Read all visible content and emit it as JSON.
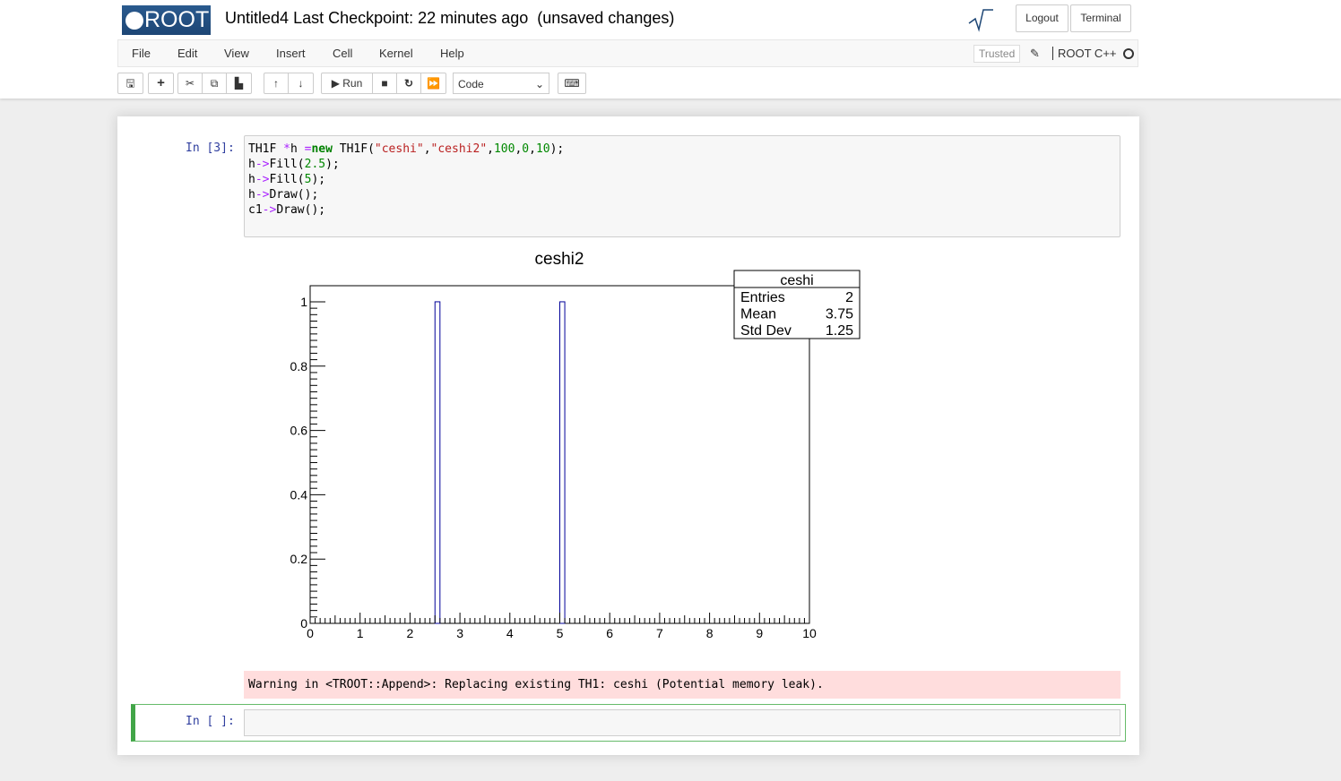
{
  "header": {
    "logo": "ROOT",
    "title": "Untitled4",
    "checkpoint": "Last Checkpoint: 22 minutes ago",
    "unsaved": "(unsaved changes)",
    "logout": "Logout",
    "terminal": "Terminal"
  },
  "menu": [
    "File",
    "Edit",
    "View",
    "Insert",
    "Cell",
    "Kernel",
    "Help"
  ],
  "status": {
    "trusted": "Trusted",
    "kernel": "ROOT C++"
  },
  "toolbar": {
    "run": "Run",
    "cell_type": "Code"
  },
  "cell1": {
    "prompt": "In [3]:",
    "code": [
      "TH1F *h =new TH1F(\"ceshi\",\"ceshi2\",100,0,10);",
      "h->Fill(2.5);",
      "h->Fill(5);",
      "h->Draw();",
      "c1->Draw();"
    ]
  },
  "warning": "Warning in <TROOT::Append>: Replacing existing TH1: ceshi (Potential memory leak).",
  "cell2": {
    "prompt": "In [ ]:"
  },
  "chart_data": {
    "type": "bar",
    "title": "ceshi2",
    "bins": 100,
    "xlim": [
      0,
      10
    ],
    "ylim": [
      0,
      1.05
    ],
    "x_ticks": [
      "0",
      "1",
      "2",
      "3",
      "4",
      "5",
      "6",
      "7",
      "8",
      "9",
      "10"
    ],
    "y_ticks": [
      "0",
      "0.2",
      "0.4",
      "0.6",
      "0.8",
      "1"
    ],
    "filled_bins": [
      {
        "x": [
          2.5,
          2.6
        ],
        "value": 1
      },
      {
        "x": [
          5.0,
          5.1
        ],
        "value": 1
      }
    ],
    "line_color": "#000099",
    "stats": {
      "name": "ceshi",
      "rows": [
        [
          "Entries",
          "2"
        ],
        [
          "Mean",
          "3.75"
        ],
        [
          "Std Dev",
          "1.25"
        ]
      ]
    }
  }
}
